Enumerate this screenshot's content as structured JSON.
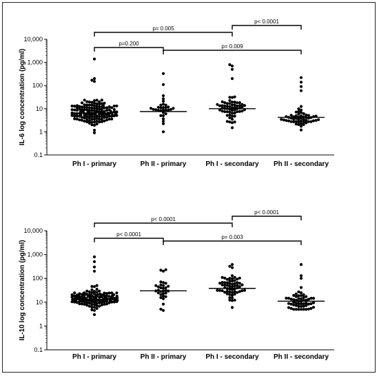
{
  "chart_data": [
    {
      "type": "scatter",
      "subtype": "dot-plot-with-median",
      "ylabel": "IL-6 log concentration (pg/ml)",
      "yscale": "log",
      "ylim": [
        0.1,
        10000
      ],
      "yticks": [
        "0.1",
        "1",
        "10",
        "100",
        "1,000",
        "10,000"
      ],
      "categories": [
        "Ph I - primary",
        "Ph II - primary",
        "Ph I - secondary",
        "Ph II - secondary"
      ],
      "groups": [
        {
          "name": "Ph I - primary",
          "median": 6.5,
          "n": 150,
          "min": 0.9,
          "max": 1400,
          "spread": 0.38,
          "outliers": [
            1400,
            200,
            170,
            150
          ]
        },
        {
          "name": "Ph II - primary",
          "median": 7.5,
          "n": 30,
          "min": 1.0,
          "max": 330,
          "spread": 0.45,
          "outliers": [
            330,
            110
          ]
        },
        {
          "name": "Ph I - secondary",
          "median": 10,
          "n": 60,
          "min": 1.5,
          "max": 800,
          "spread": 0.42,
          "outliers": [
            800,
            700,
            500,
            200
          ]
        },
        {
          "name": "Ph II - secondary",
          "median": 4.2,
          "n": 55,
          "min": 1.2,
          "max": 220,
          "spread": 0.3,
          "outliers": [
            220,
            140,
            90,
            60
          ]
        }
      ],
      "comparisons": [
        {
          "from": "Ph I - primary",
          "to": "Ph I - secondary",
          "label": "p= 0.005"
        },
        {
          "from": "Ph I - secondary",
          "to": "Ph II - secondary",
          "label": "p< 0.0001"
        },
        {
          "from": "Ph I - primary",
          "to": "Ph II - primary",
          "label": "p=0.200"
        },
        {
          "from": "Ph II - primary",
          "to": "Ph II - secondary",
          "label": "p= 0.009"
        }
      ]
    },
    {
      "type": "scatter",
      "subtype": "dot-plot-with-median",
      "ylabel": "IL-10 log concentration (pg/ml)",
      "yscale": "log",
      "ylim": [
        0.1,
        10000
      ],
      "yticks": [
        "0.1",
        "1",
        "10",
        "100",
        "1,000",
        "10,000"
      ],
      "categories": [
        "Ph I - primary",
        "Ph II - primary",
        "Ph I - secondary",
        "Ph II - secondary"
      ],
      "groups": [
        {
          "name": "Ph I - primary",
          "median": 13,
          "n": 150,
          "min": 3,
          "max": 800,
          "spread": 0.3,
          "outliers": [
            800,
            500,
            300,
            200
          ]
        },
        {
          "name": "Ph II - primary",
          "median": 30,
          "n": 30,
          "min": 4.5,
          "max": 230,
          "spread": 0.45,
          "outliers": [
            230,
            220,
            200
          ]
        },
        {
          "name": "Ph I - secondary",
          "median": 38,
          "n": 60,
          "min": 6,
          "max": 380,
          "spread": 0.4,
          "outliers": [
            380,
            320,
            280
          ]
        },
        {
          "name": "Ph II - secondary",
          "median": 11,
          "n": 55,
          "min": 5,
          "max": 380,
          "spread": 0.35,
          "outliers": [
            380,
            130,
            100
          ]
        }
      ],
      "comparisons": [
        {
          "from": "Ph I - primary",
          "to": "Ph I - secondary",
          "label": "p< 0.0001"
        },
        {
          "from": "Ph I - secondary",
          "to": "Ph II - secondary",
          "label": "p< 0.0001"
        },
        {
          "from": "Ph I - primary",
          "to": "Ph II - primary",
          "label": "p< 0.0001"
        },
        {
          "from": "Ph II - primary",
          "to": "Ph II - secondary",
          "label": "p= 0.003"
        }
      ]
    }
  ]
}
